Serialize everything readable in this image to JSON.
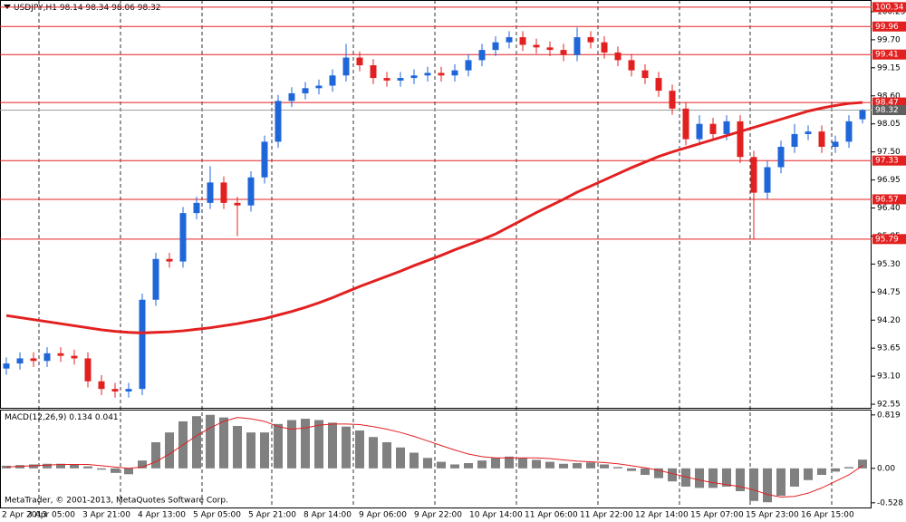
{
  "chart_data": {
    "type": "candlestick",
    "symbol": "USDJPY,H1",
    "ohlc": [
      98.14,
      98.34,
      98.06,
      98.32
    ],
    "open": [
      93.25,
      93.35,
      93.45,
      93.4,
      93.55,
      93.5,
      93.45,
      93.0,
      92.85,
      92.8,
      92.85,
      94.6,
      95.4,
      95.35,
      96.3,
      96.5,
      96.9,
      96.5,
      96.45,
      97.0,
      97.7,
      98.5,
      98.65,
      98.75,
      98.8,
      99.0,
      99.35,
      99.2,
      98.95,
      98.9,
      98.95,
      99.0,
      99.05,
      99.0,
      99.1,
      99.3,
      99.5,
      99.65,
      99.75,
      99.6,
      99.55,
      99.5,
      99.4,
      99.75,
      99.65,
      99.45,
      99.3,
      99.1,
      98.95,
      98.7,
      98.35,
      97.75,
      98.05,
      97.85,
      98.1,
      97.4,
      96.7,
      97.2,
      97.6,
      97.85,
      97.9,
      97.6,
      97.7,
      98.14
    ],
    "high": [
      93.47,
      93.57,
      93.57,
      93.67,
      93.67,
      93.62,
      93.57,
      93.12,
      92.97,
      92.97,
      94.72,
      95.52,
      95.52,
      96.42,
      96.62,
      97.22,
      97.02,
      96.62,
      97.12,
      97.82,
      98.62,
      98.77,
      98.87,
      98.92,
      99.12,
      99.62,
      99.47,
      99.32,
      99.07,
      99.07,
      99.12,
      99.17,
      99.17,
      99.22,
      99.42,
      99.62,
      99.77,
      99.87,
      99.87,
      99.72,
      99.67,
      99.62,
      99.94,
      99.87,
      99.77,
      99.57,
      99.42,
      99.22,
      99.07,
      98.82,
      98.47,
      98.22,
      98.17,
      98.22,
      98.22,
      97.52,
      97.32,
      97.72,
      98.05,
      98.02,
      98.02,
      97.82,
      98.22,
      98.34
    ],
    "low": [
      93.13,
      93.23,
      93.28,
      93.28,
      93.38,
      93.33,
      92.88,
      92.73,
      92.68,
      92.68,
      92.73,
      94.48,
      95.23,
      95.23,
      96.18,
      96.38,
      96.38,
      95.85,
      96.33,
      96.88,
      97.58,
      98.38,
      98.53,
      98.63,
      98.68,
      98.88,
      99.08,
      98.83,
      98.78,
      98.78,
      98.83,
      98.88,
      98.88,
      98.88,
      98.98,
      99.18,
      99.38,
      99.53,
      99.48,
      99.43,
      99.38,
      99.28,
      99.28,
      99.53,
      99.33,
      99.18,
      98.98,
      98.83,
      98.58,
      98.23,
      97.63,
      97.63,
      97.73,
      97.73,
      97.28,
      95.79,
      96.58,
      97.08,
      97.48,
      97.73,
      97.48,
      97.48,
      97.58,
      98.06
    ],
    "close": [
      93.35,
      93.45,
      93.4,
      93.55,
      93.5,
      93.45,
      93.0,
      92.85,
      92.8,
      92.85,
      94.6,
      95.4,
      95.35,
      96.3,
      96.5,
      96.9,
      96.5,
      96.45,
      97.0,
      97.7,
      98.5,
      98.65,
      98.75,
      98.8,
      99.0,
      99.35,
      99.2,
      98.95,
      98.9,
      98.95,
      99.0,
      99.05,
      99.0,
      99.1,
      99.3,
      99.5,
      99.65,
      99.75,
      99.6,
      99.55,
      99.5,
      99.4,
      99.75,
      99.65,
      99.45,
      99.3,
      99.1,
      98.95,
      98.7,
      98.35,
      97.75,
      98.05,
      97.85,
      98.1,
      97.4,
      96.7,
      97.2,
      97.6,
      97.85,
      97.9,
      97.6,
      97.7,
      98.1,
      98.32
    ],
    "up_color": "#1f66d9",
    "down_color": "#e32020",
    "ma": {
      "color": "#e32020",
      "values": [
        94.29,
        94.25,
        94.21,
        94.17,
        94.13,
        94.09,
        94.05,
        94.01,
        93.98,
        93.96,
        93.95,
        93.96,
        93.97,
        93.99,
        94.02,
        94.05,
        94.09,
        94.13,
        94.18,
        94.23,
        94.3,
        94.37,
        94.45,
        94.54,
        94.64,
        94.75,
        94.86,
        94.96,
        95.06,
        95.16,
        95.27,
        95.37,
        95.47,
        95.58,
        95.68,
        95.78,
        95.89,
        96.03,
        96.17,
        96.31,
        96.44,
        96.57,
        96.71,
        96.83,
        96.95,
        97.07,
        97.19,
        97.3,
        97.41,
        97.5,
        97.58,
        97.66,
        97.74,
        97.82,
        97.9,
        97.98,
        98.06,
        98.14,
        98.22,
        98.3,
        98.36,
        98.41,
        98.45,
        98.47
      ]
    },
    "levels": [
      100.34,
      99.96,
      99.41,
      98.47,
      97.33,
      96.57,
      95.79
    ],
    "level_color": "#e32020",
    "ylim": [
      92.48,
      100.48
    ],
    "yticks": [
      100.25,
      {
        "value": 99.7,
        "label": "99.70"
      },
      99.15,
      {
        "value": 98.6,
        "label": "98.60"
      },
      98.05,
      {
        "value": 97.5,
        "label": "97.50"
      },
      96.95,
      {
        "value": 96.4,
        "label": "96.40"
      },
      95.85,
      {
        "value": 95.3,
        "label": "95.30"
      },
      94.75,
      {
        "value": 94.2,
        "label": "94.20"
      },
      93.65,
      {
        "value": 93.1,
        "label": "93.10"
      },
      92.55
    ],
    "x_labels": [
      "2 Apr 2013",
      "3 Apr 05:00",
      "3 Apr 21:00",
      "4 Apr 13:00",
      "5 Apr 05:00",
      "5 Apr 21:00",
      "8 Apr 14:00",
      "9 Apr 06:00",
      "9 Apr 22:00",
      "10 Apr 14:00",
      "11 Apr 06:00",
      "11 Apr 22:00",
      "12 Apr 14:00",
      "15 Apr 07:00",
      "15 Apr 23:00",
      "16 Apr 15:00"
    ],
    "macd": {
      "title": "MACD(12,26,9)",
      "printed": [
        0.134,
        0.041
      ],
      "histogram": [
        0.04,
        0.05,
        0.06,
        0.07,
        0.07,
        0.06,
        0.03,
        -0.02,
        -0.07,
        -0.09,
        0.12,
        0.4,
        0.55,
        0.72,
        0.8,
        0.82,
        0.78,
        0.65,
        0.55,
        0.55,
        0.68,
        0.74,
        0.76,
        0.74,
        0.7,
        0.64,
        0.58,
        0.48,
        0.4,
        0.32,
        0.24,
        0.16,
        0.1,
        0.06,
        0.08,
        0.12,
        0.16,
        0.18,
        0.16,
        0.13,
        0.1,
        0.07,
        0.08,
        0.09,
        0.06,
        0.02,
        -0.04,
        -0.1,
        -0.15,
        -0.2,
        -0.28,
        -0.3,
        -0.3,
        -0.28,
        -0.35,
        -0.5,
        -0.52,
        -0.42,
        -0.28,
        -0.18,
        -0.1,
        -0.05,
        0.02,
        0.134
      ],
      "signal": [
        0.02,
        0.03,
        0.04,
        0.05,
        0.06,
        0.06,
        0.06,
        0.04,
        0.02,
        0.0,
        0.02,
        0.1,
        0.22,
        0.36,
        0.5,
        0.62,
        0.72,
        0.78,
        0.76,
        0.72,
        0.64,
        0.6,
        0.62,
        0.66,
        0.68,
        0.68,
        0.67,
        0.64,
        0.6,
        0.55,
        0.49,
        0.42,
        0.35,
        0.28,
        0.22,
        0.18,
        0.16,
        0.16,
        0.16,
        0.16,
        0.15,
        0.13,
        0.11,
        0.1,
        0.09,
        0.07,
        0.04,
        0.01,
        -0.03,
        -0.08,
        -0.13,
        -0.18,
        -0.22,
        -0.25,
        -0.28,
        -0.33,
        -0.4,
        -0.44,
        -0.43,
        -0.38,
        -0.3,
        -0.2,
        -0.1,
        0.041
      ],
      "hist_color": "#808080",
      "signal_color": "#e32020",
      "ylim": [
        -0.6,
        0.9
      ],
      "yticks": [
        0.819,
        {
          "value": 0,
          "label": "0.00"
        },
        -0.528
      ]
    },
    "footer": "MetaTrader, © 2001-2013, MetaQuotes Software Corp."
  }
}
